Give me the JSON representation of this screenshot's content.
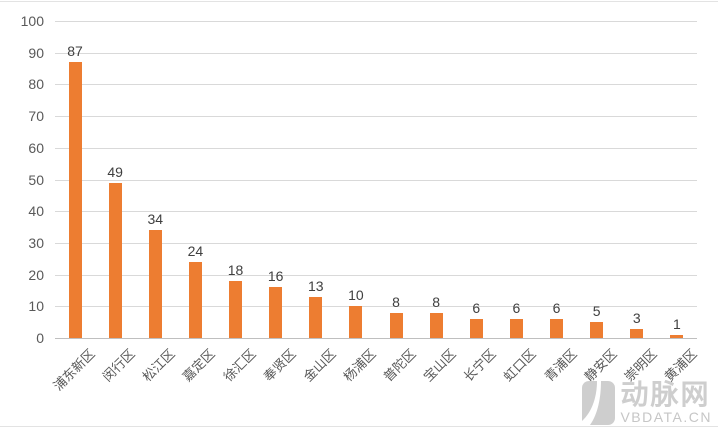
{
  "chart_data": {
    "type": "bar",
    "title": "",
    "xlabel": "",
    "ylabel": "",
    "categories": [
      "浦东新区",
      "闵行区",
      "松江区",
      "嘉定区",
      "徐汇区",
      "奉贤区",
      "金山区",
      "杨浦区",
      "普陀区",
      "宝山区",
      "长宁区",
      "虹口区",
      "青浦区",
      "静安区",
      "崇明区",
      "黄浦区"
    ],
    "values": [
      87,
      49,
      34,
      24,
      18,
      16,
      13,
      10,
      8,
      8,
      6,
      6,
      6,
      5,
      3,
      1
    ],
    "ylim": [
      0,
      100
    ],
    "yticks": [
      0,
      10,
      20,
      30,
      40,
      50,
      60,
      70,
      80,
      90,
      100
    ],
    "grid": true,
    "legend": "none",
    "data_labels": true,
    "bar_color": "#ED7D31"
  },
  "watermark": {
    "brand_cn": "动脉网",
    "brand_domain": "VBDATA.CN"
  },
  "colors": {
    "bar": "#ED7D31",
    "gridline": "#D9D9D9",
    "axis_line": "#BFBFBF",
    "tick_label": "#595959",
    "data_label": "#3F3F3F",
    "watermark": "#CECECE"
  }
}
